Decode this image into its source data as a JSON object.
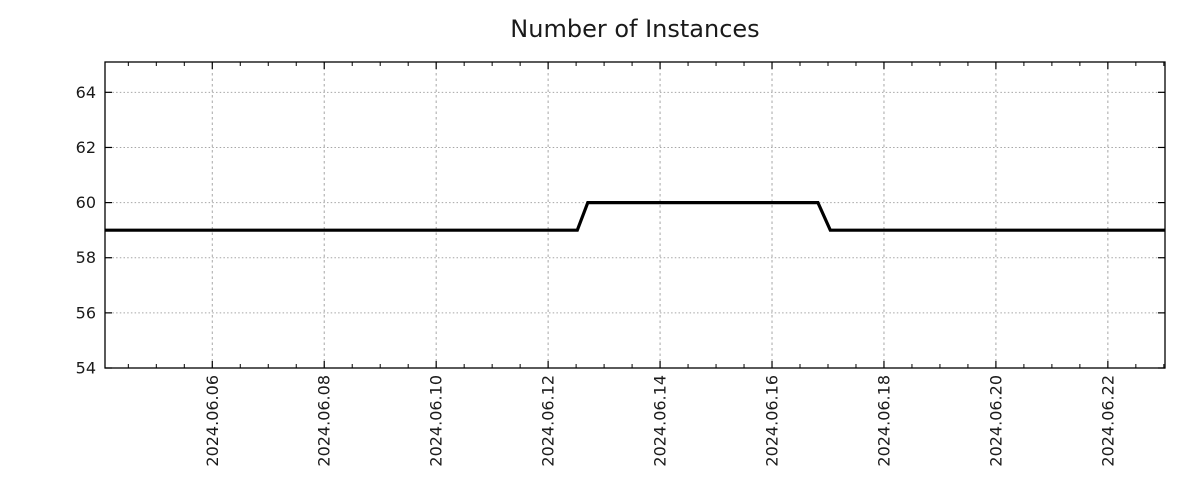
{
  "title": "Number of Instances",
  "colors": {
    "background": "#ffffff",
    "axis": "#000000",
    "grid": "#a6a6a6",
    "text": "#1a1a1a",
    "line": "#000000"
  },
  "chart_data": {
    "type": "line",
    "style": "step",
    "title": "Number of Instances",
    "xlabel": "",
    "ylabel": "",
    "legend": "none",
    "grid": true,
    "x_domain": [
      "2024-06-04T02:00",
      "2024-06-23T00:30"
    ],
    "ylim": [
      54,
      65.1
    ],
    "yticks": [
      54,
      56,
      58,
      60,
      62,
      64
    ],
    "ytick_labels": [
      "54",
      "56",
      "58",
      "60",
      "62",
      "64"
    ],
    "x_major_ticks": [
      {
        "date": "2024-06-06",
        "label": "2024.06.06"
      },
      {
        "date": "2024-06-08",
        "label": "2024.06.08"
      },
      {
        "date": "2024-06-10",
        "label": "2024.06.10"
      },
      {
        "date": "2024-06-12",
        "label": "2024.06.12"
      },
      {
        "date": "2024-06-14",
        "label": "2024.06.14"
      },
      {
        "date": "2024-06-16",
        "label": "2024.06.16"
      },
      {
        "date": "2024-06-18",
        "label": "2024.06.18"
      },
      {
        "date": "2024-06-20",
        "label": "2024.06.20"
      },
      {
        "date": "2024-06-22",
        "label": "2024.06.22"
      }
    ],
    "x_minor_interval_days": 0.5,
    "series": [
      {
        "name": "instances",
        "points": [
          [
            "2024-06-04T02:00",
            59
          ],
          [
            "2024-06-12T12:30",
            59
          ],
          [
            "2024-06-12T17:00",
            60
          ],
          [
            "2024-06-16T19:40",
            60
          ],
          [
            "2024-06-17T01:00",
            59
          ],
          [
            "2024-06-23T00:30",
            59
          ]
        ]
      }
    ]
  }
}
